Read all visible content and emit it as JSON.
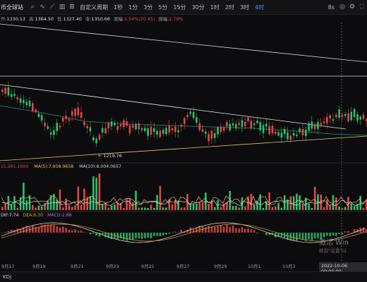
{
  "toolbar": {
    "symbol": "币全球站",
    "periods": [
      "自定义周期",
      "1秒",
      "1分",
      "3分",
      "5分",
      "15分",
      "30分",
      "1时",
      "2时",
      "3时",
      "4时",
      "8s"
    ],
    "active_period": "4时"
  },
  "ohlc": {
    "open_label": "开:",
    "open": "1330.13",
    "high_label": "高:",
    "high": "1364.50",
    "low_label": "低:",
    "low": "1327.40",
    "close_label": "收:",
    "close": "1350.66",
    "change_label": "涨幅:",
    "change": "1.54%(20.45)",
    "amp_label": "振幅:",
    "amp": "2.79%"
  },
  "low_marker": "← 1219.76",
  "volume_indicator": {
    "vol": "15,991.1600",
    "ma5": "MA(5):7,958.9658",
    "ma10": "MA(10):8,004.0657"
  },
  "macd_indicator": {
    "dif": "DIF:7.74",
    "dea": "DEA:6.30",
    "macd": "MACD:2.88"
  },
  "x_axis": [
    "9月17",
    "9月19",
    "9月21",
    "9月23",
    "9月25",
    "9月27",
    "9月29",
    "10月1",
    "10月3"
  ],
  "cursor_time": "2022-10-06 00:00:00",
  "watermark": {
    "line1": "激活 Win",
    "line2": "转到\"设置\"以"
  },
  "bottom_tab": "KDJ",
  "colors": {
    "up": "#e04848",
    "down": "#2fbf71",
    "accent": "#4f8cff",
    "trend_line": "#e8e8e8",
    "ema_line": "#2c8a8a",
    "support_line": "#e0c080"
  }
}
